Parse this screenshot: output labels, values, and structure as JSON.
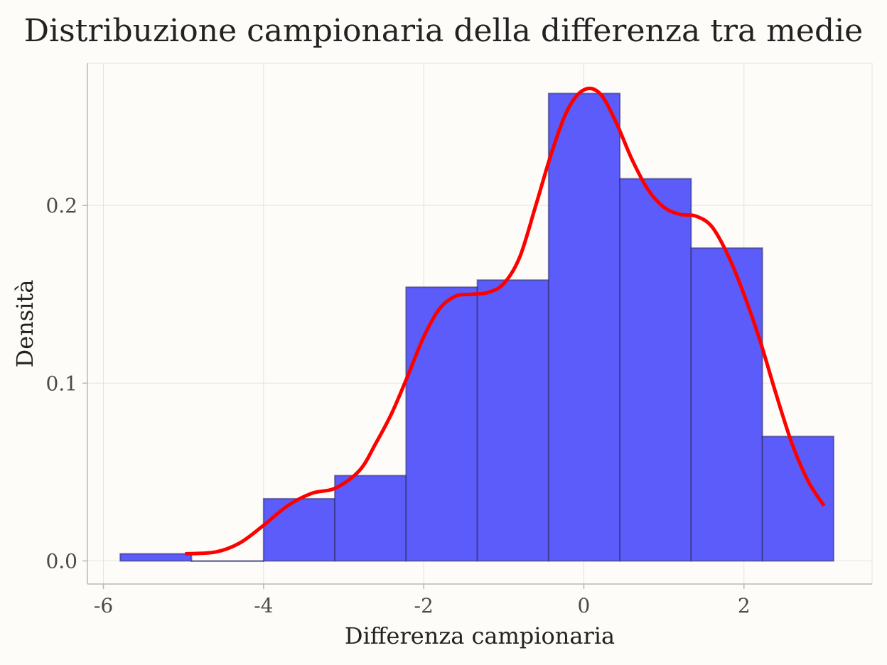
{
  "chart_data": {
    "type": "bar",
    "title": "Distribuzione campionaria della differenza tra medie",
    "xlabel": "Differenza campionaria",
    "ylabel": "Densità",
    "xlim": [
      -6.2,
      3.6
    ],
    "ylim": [
      -0.013,
      0.28
    ],
    "x_ticks": [
      -6,
      -4,
      -2,
      0,
      2
    ],
    "x_tick_labels": [
      "-6",
      "-4",
      "-2",
      "0",
      "2"
    ],
    "y_ticks": [
      0.0,
      0.1,
      0.2
    ],
    "y_tick_labels": [
      "0.0",
      "0.1",
      "0.2"
    ],
    "grid": true,
    "bins": [
      {
        "x0": -5.79,
        "x1": -4.9,
        "density": 0.004
      },
      {
        "x0": -4.9,
        "x1": -4.0,
        "density": 0.0
      },
      {
        "x0": -4.0,
        "x1": -3.11,
        "density": 0.035
      },
      {
        "x0": -3.11,
        "x1": -2.22,
        "density": 0.048
      },
      {
        "x0": -2.22,
        "x1": -1.33,
        "density": 0.154
      },
      {
        "x0": -1.33,
        "x1": -0.44,
        "density": 0.158
      },
      {
        "x0": -0.44,
        "x1": 0.45,
        "density": 0.263
      },
      {
        "x0": 0.45,
        "x1": 1.34,
        "density": 0.215
      },
      {
        "x0": 1.34,
        "x1": 2.23,
        "density": 0.176
      },
      {
        "x0": 2.23,
        "x1": 3.12,
        "density": 0.07
      }
    ],
    "density_curve": {
      "x": [
        -4.98,
        -4.6,
        -4.3,
        -4.0,
        -3.7,
        -3.4,
        -3.1,
        -2.8,
        -2.6,
        -2.4,
        -2.2,
        -2.0,
        -1.8,
        -1.6,
        -1.4,
        -1.2,
        -1.0,
        -0.8,
        -0.6,
        -0.4,
        -0.2,
        0.0,
        0.2,
        0.4,
        0.6,
        0.8,
        1.0,
        1.2,
        1.4,
        1.6,
        1.8,
        2.0,
        2.2,
        2.4,
        2.6,
        2.8,
        3.0
      ],
      "y": [
        0.004,
        0.005,
        0.01,
        0.02,
        0.031,
        0.038,
        0.041,
        0.051,
        0.066,
        0.083,
        0.104,
        0.126,
        0.142,
        0.149,
        0.15,
        0.151,
        0.156,
        0.171,
        0.2,
        0.23,
        0.254,
        0.265,
        0.263,
        0.247,
        0.226,
        0.209,
        0.199,
        0.195,
        0.194,
        0.188,
        0.172,
        0.15,
        0.124,
        0.094,
        0.066,
        0.045,
        0.031
      ]
    },
    "colors": {
      "bar_fill": "#5c5cfa",
      "bar_edge": "#2e2e73",
      "curve": "#ff0000",
      "grid": "#e3e3e0",
      "axis": "#b8b8b8",
      "background": "#fdfcf8"
    }
  }
}
